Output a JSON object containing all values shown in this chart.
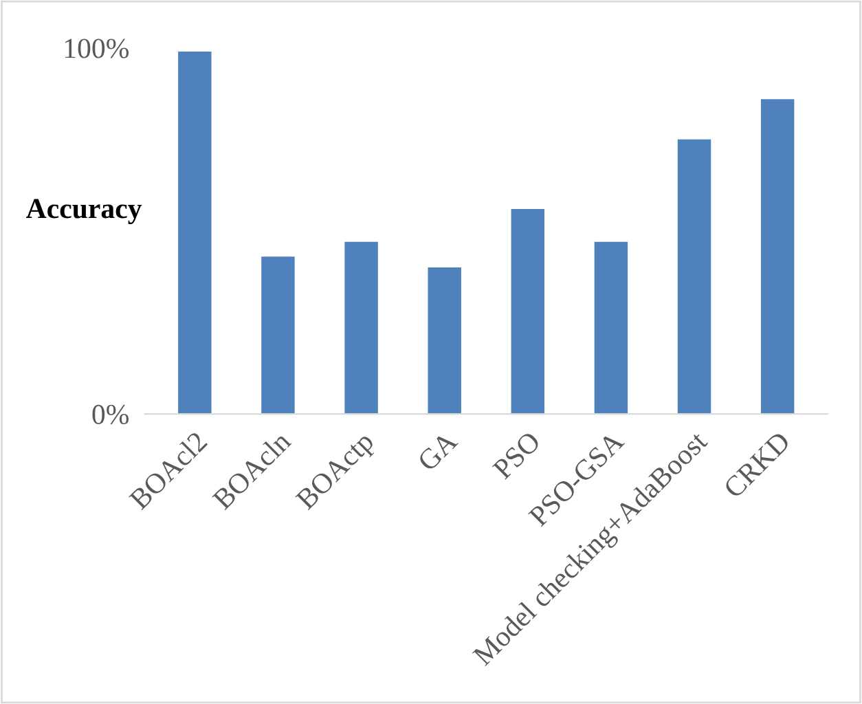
{
  "chart_data": {
    "type": "bar",
    "ylabel": "Accuracy",
    "categories": [
      "BOAcl2",
      "BOAcln",
      "BOActp",
      "GA",
      "PSO",
      "PSO-GSA",
      "Model checking+AdaBoost",
      "CRKD"
    ],
    "values": [
      99,
      43,
      47,
      40,
      56,
      47,
      75,
      86
    ],
    "color": "#4f81bd",
    "ylim": [
      0,
      100
    ],
    "yticks": [
      {
        "value": 0,
        "label": "0%"
      },
      {
        "value": 100,
        "label": "100%"
      }
    ],
    "grid": false,
    "legend": false
  }
}
